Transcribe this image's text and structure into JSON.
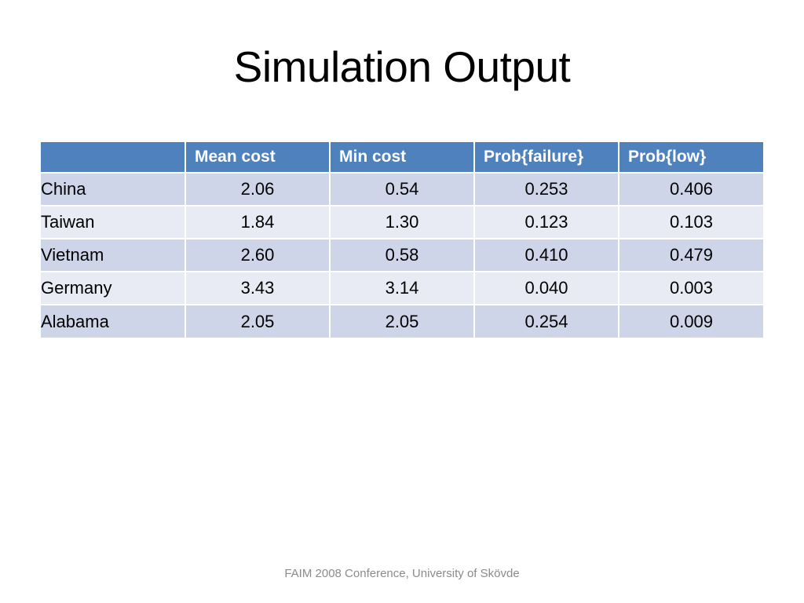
{
  "title": "Simulation Output",
  "footer": "FAIM 2008 Conference, University of Skövde",
  "colors": {
    "background": "#FFFFFF",
    "header_bg": "#4F81BD",
    "header_text": "#FFFFFF",
    "band_row_bg": "#CED5E8",
    "light_row_bg": "#E9EBF4",
    "body_text": "#000000",
    "footer_text": "#8B8B8B"
  },
  "chart_data": {
    "type": "table",
    "title": "Simulation Output",
    "columns": [
      "",
      "Mean cost",
      "Min cost",
      "Prob{failure}",
      "Prob{low}"
    ],
    "rows": [
      {
        "label": "China",
        "values": [
          "2.06",
          "0.54",
          "0.253",
          "0.406"
        ]
      },
      {
        "label": "Taiwan",
        "values": [
          "1.84",
          "1.30",
          "0.123",
          "0.103"
        ]
      },
      {
        "label": "Vietnam",
        "values": [
          "2.60",
          "0.58",
          "0.410",
          "0.479"
        ]
      },
      {
        "label": "Germany",
        "values": [
          "3.43",
          "3.14",
          "0.040",
          "0.003"
        ]
      },
      {
        "label": "Alabama",
        "values": [
          "2.05",
          "2.05",
          "0.254",
          "0.009"
        ]
      }
    ]
  }
}
